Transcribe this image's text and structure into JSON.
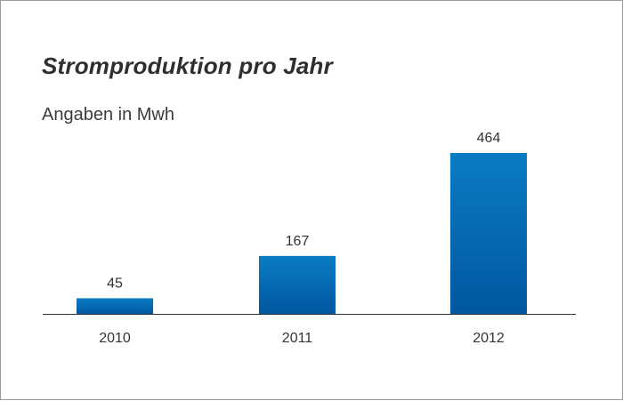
{
  "chart_data": {
    "type": "bar",
    "title": "Stromproduktion pro Jahr",
    "subtitle": "Angaben in Mwh",
    "categories": [
      "2010",
      "2011",
      "2012"
    ],
    "values": [
      45,
      167,
      464
    ],
    "xlabel": "",
    "ylabel": "",
    "ylim": [
      0,
      464
    ],
    "grid": false,
    "legend": "none",
    "colors": {
      "bar_top": "#0a7cc4",
      "bar_bottom": "#0057a0",
      "axis": "#333333"
    }
  }
}
